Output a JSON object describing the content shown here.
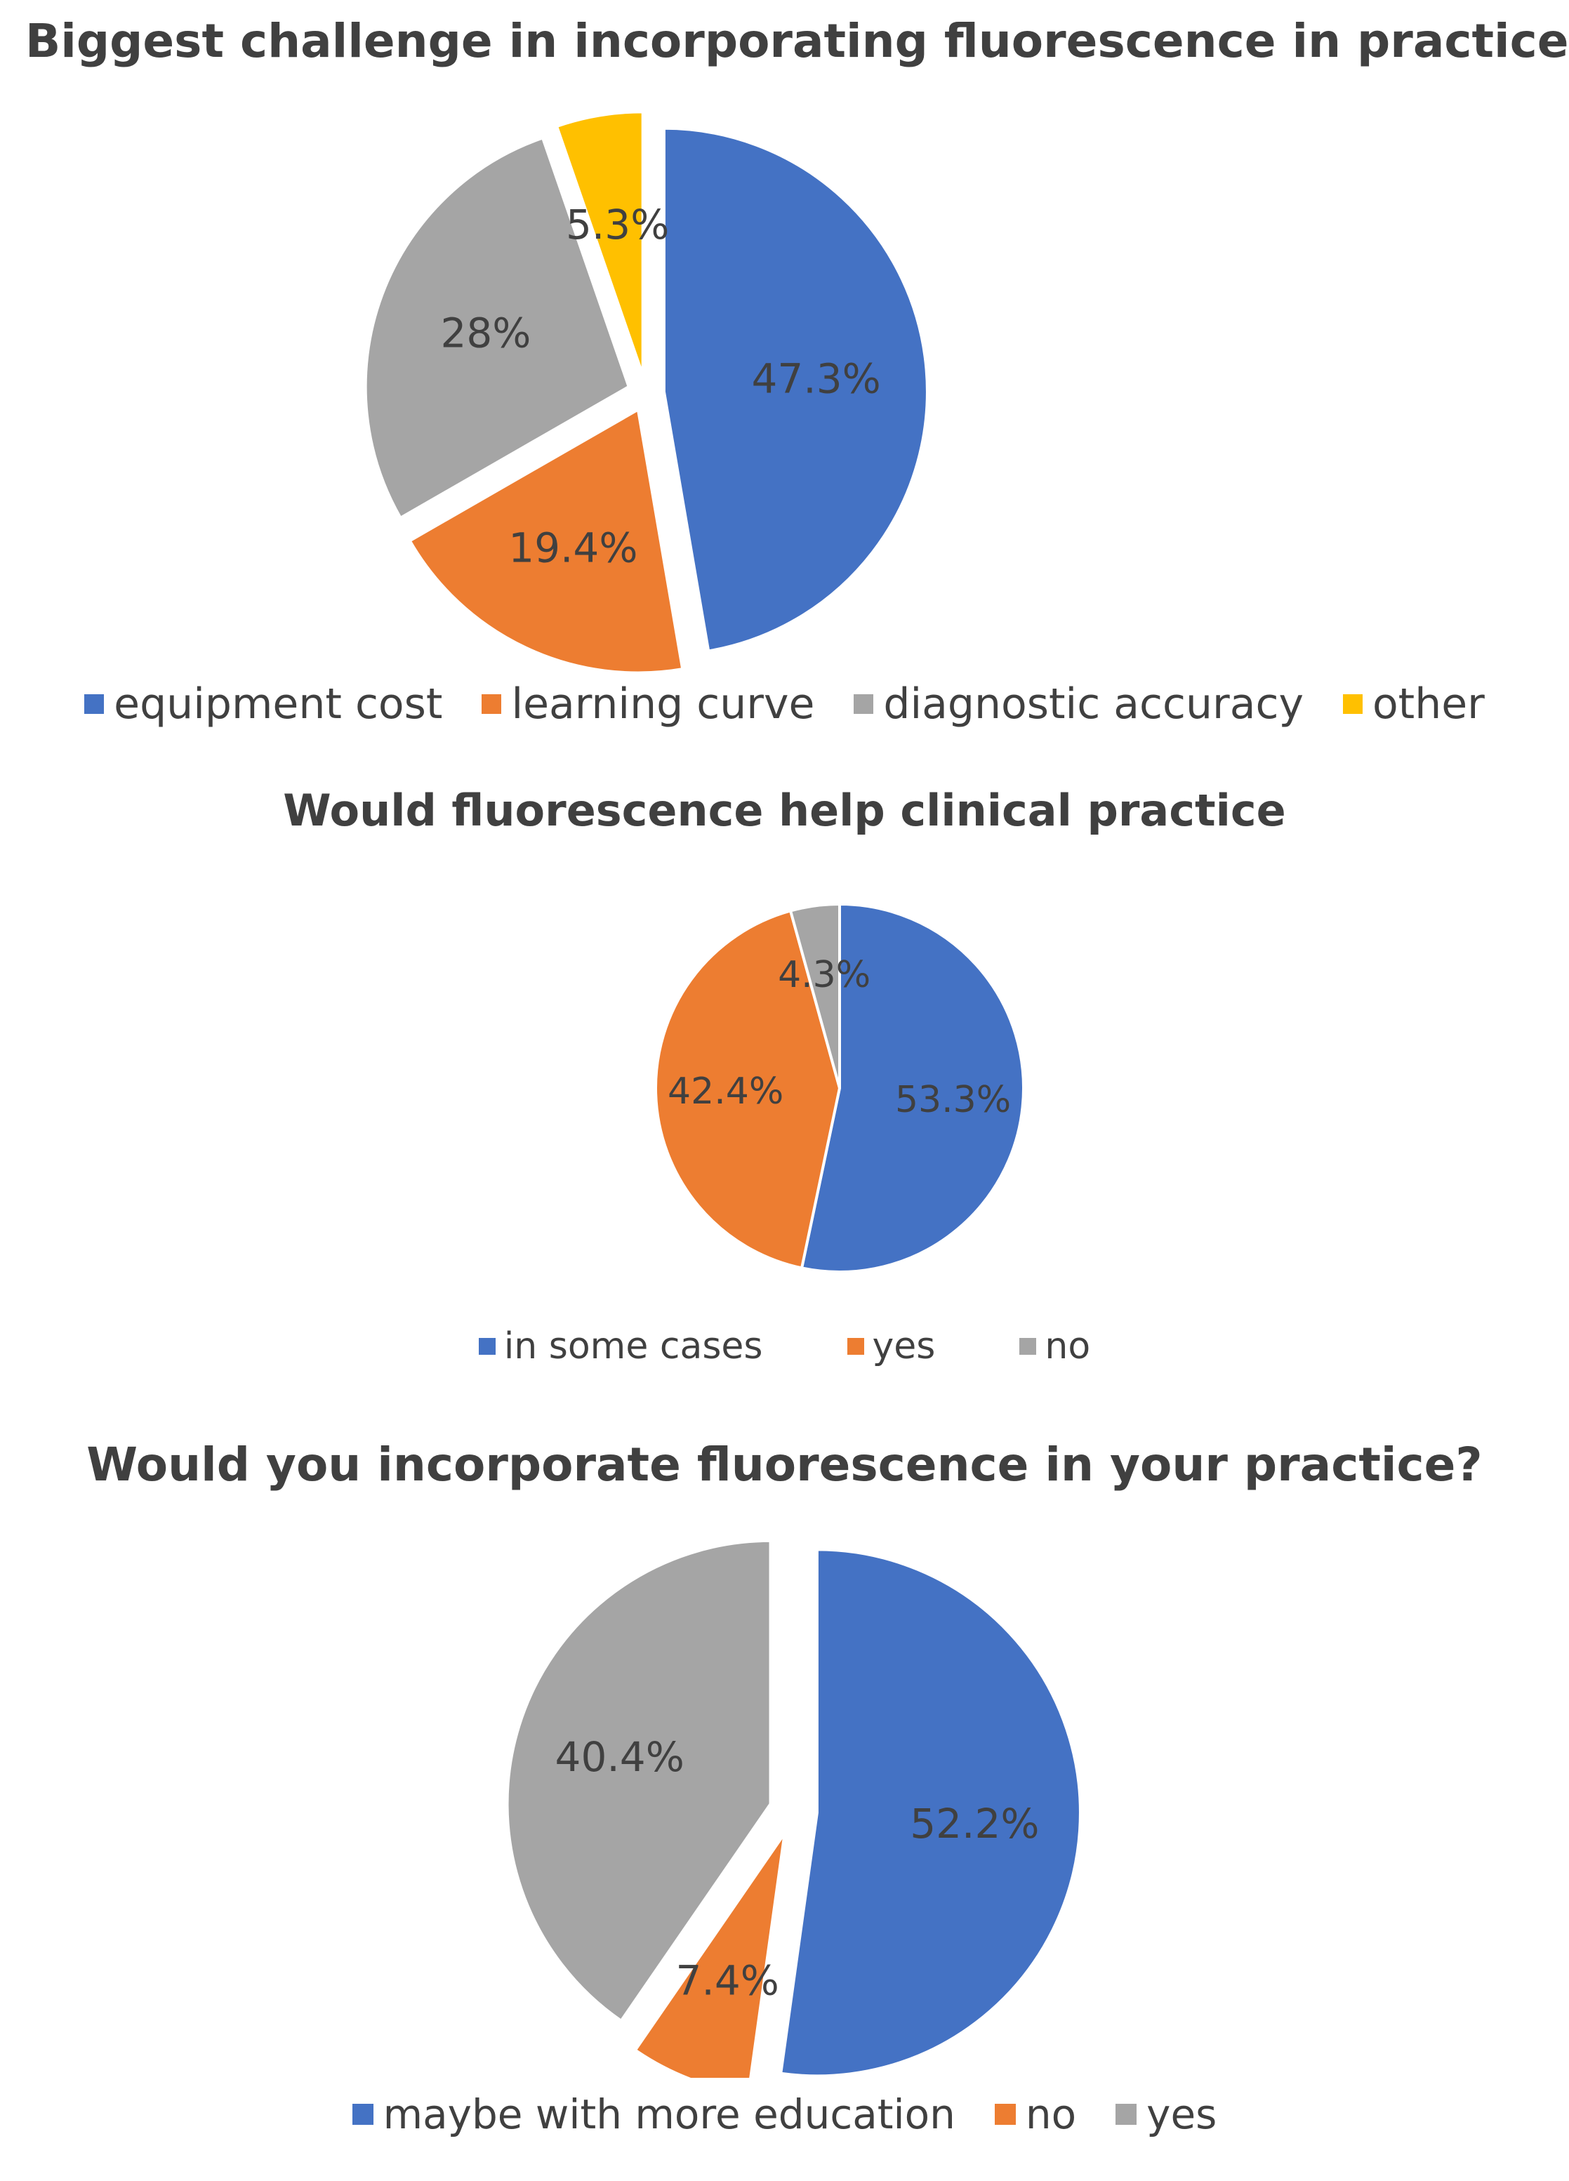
{
  "colors": {
    "blue": "#4472C4",
    "orange": "#ED7D31",
    "gray": "#A5A5A5",
    "yellow": "#FFC000",
    "text": "#404040"
  },
  "chart_data": [
    {
      "type": "pie",
      "title": "Biggest challenge in incorporating fluorescence in practice",
      "exploded": true,
      "legend_position": "bottom",
      "slices": [
        {
          "label": "equipment cost",
          "value": 47.3,
          "display": "47.3%",
          "color": "#4472C4"
        },
        {
          "label": "learning curve",
          "value": 19.4,
          "display": "19.4%",
          "color": "#ED7D31"
        },
        {
          "label": "diagnostic accuracy",
          "value": 28,
          "display": "28%",
          "color": "#A5A5A5"
        },
        {
          "label": "other",
          "value": 5.3,
          "display": "5.3%",
          "color": "#FFC000"
        }
      ]
    },
    {
      "type": "pie",
      "title": "Would fluorescence help clinical practice",
      "exploded": false,
      "legend_position": "bottom",
      "slices": [
        {
          "label": "in some cases",
          "value": 53.3,
          "display": "53.3%",
          "color": "#4472C4"
        },
        {
          "label": "yes",
          "value": 42.4,
          "display": "42.4%",
          "color": "#ED7D31"
        },
        {
          "label": "no",
          "value": 4.3,
          "display": "4.3%",
          "color": "#A5A5A5"
        }
      ]
    },
    {
      "type": "pie",
      "title": "Would you incorporate fluorescence in your practice?",
      "exploded": true,
      "legend_position": "bottom",
      "slices": [
        {
          "label": "maybe with more education",
          "value": 52.2,
          "display": "52.2%",
          "color": "#4472C4"
        },
        {
          "label": "no",
          "value": 7.4,
          "display": "7.4%",
          "color": "#ED7D31"
        },
        {
          "label": "yes",
          "value": 40.4,
          "display": "40.4%",
          "color": "#A5A5A5"
        }
      ]
    }
  ]
}
